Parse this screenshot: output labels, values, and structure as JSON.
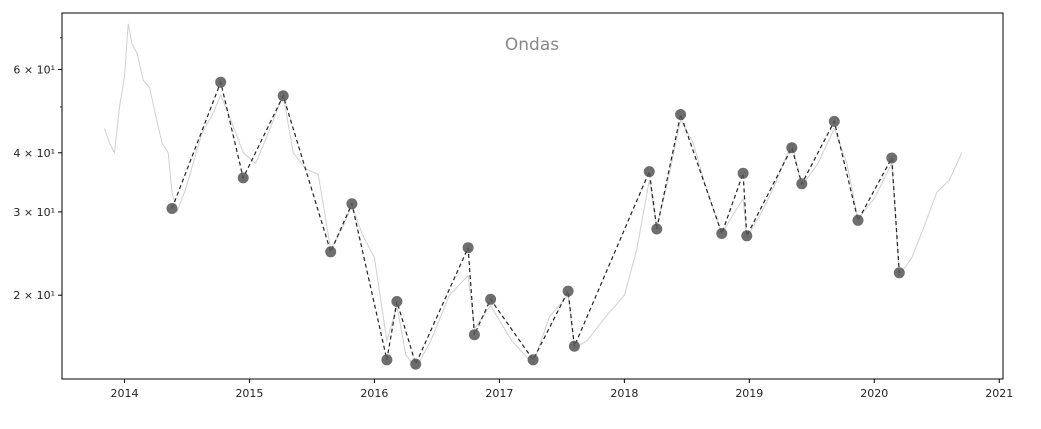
{
  "chart_data": {
    "type": "line",
    "title": "Ondas",
    "xlabel": "",
    "ylabel": "",
    "y_scale": "log",
    "grid": false,
    "x_tick_labels": [
      "2014",
      "2015",
      "2016",
      "2017",
      "2018",
      "2019",
      "2020",
      "2021"
    ],
    "y_ticks": [
      {
        "value": 20,
        "label": "2 × 10¹"
      },
      {
        "value": 30,
        "label": "3 × 10¹"
      },
      {
        "value": 40,
        "label": "4 × 10¹"
      },
      {
        "value": 60,
        "label": "6 × 10¹"
      }
    ],
    "xlim": [
      2013.5,
      2021.03
    ],
    "ylim": [
      13.3,
      79
    ],
    "colors": {
      "price_line": "#d0d0d0",
      "wave_line": "#222222",
      "markers": "#555555"
    },
    "series": [
      {
        "style": "light-gray-line",
        "x": [
          2013.84,
          2013.88,
          2013.92,
          2013.96,
          2014.0,
          2014.03,
          2014.06,
          2014.1,
          2014.15,
          2014.2,
          2014.25,
          2014.3,
          2014.35,
          2014.38,
          2014.42,
          2014.48,
          2014.55,
          2014.62,
          2014.7,
          2014.77,
          2014.85,
          2014.95,
          2015.05,
          2015.15,
          2015.27,
          2015.35,
          2015.45,
          2015.55,
          2015.65,
          2015.75,
          2015.82,
          2015.9,
          2016.0,
          2016.1,
          2016.18,
          2016.25,
          2016.33,
          2016.45,
          2016.6,
          2016.75,
          2016.8,
          2016.93,
          2017.1,
          2017.27,
          2017.4,
          2017.55,
          2017.6,
          2017.7,
          2017.85,
          2018.0,
          2018.1,
          2018.2,
          2018.26,
          2018.35,
          2018.45,
          2018.55,
          2018.65,
          2018.78,
          2018.85,
          2018.95,
          2018.98,
          2019.1,
          2019.2,
          2019.34,
          2019.42,
          2019.55,
          2019.68,
          2019.78,
          2019.87,
          2020.0,
          2020.14,
          2020.2,
          2020.3,
          2020.4,
          2020.5,
          2020.6,
          2020.7
        ],
        "y": [
          45,
          42,
          40,
          50,
          58,
          75,
          68,
          65,
          57,
          55,
          48,
          42,
          40,
          33,
          30,
          33,
          38,
          44,
          48,
          53,
          47,
          40,
          38,
          44,
          53,
          40,
          37,
          36,
          25,
          28,
          31,
          27,
          24,
          16,
          19,
          15,
          14,
          16,
          20,
          22,
          17,
          19,
          16,
          14.3,
          18,
          20,
          15.5,
          16,
          18,
          20,
          25,
          35,
          28,
          35,
          47,
          42,
          34,
          27,
          29,
          32,
          26.5,
          30,
          34,
          42,
          34,
          38,
          45,
          38,
          29,
          32,
          38,
          22,
          24,
          28,
          33,
          35,
          40
        ]
      },
      {
        "style": "dashed-line-with-markers",
        "x": [
          2014.38,
          2014.77,
          2014.95,
          2015.27,
          2015.65,
          2015.82,
          2016.1,
          2016.18,
          2016.33,
          2016.75,
          2016.8,
          2016.93,
          2017.27,
          2017.55,
          2017.6,
          2018.2,
          2018.26,
          2018.45,
          2018.78,
          2018.95,
          2018.98,
          2019.34,
          2019.42,
          2019.68,
          2019.87,
          2020.14,
          2020.2
        ],
        "y": [
          30.5,
          56.4,
          35.4,
          52.8,
          24.7,
          31.2,
          14.6,
          19.4,
          14.3,
          25.2,
          16.5,
          19.6,
          14.6,
          20.4,
          15.6,
          36.5,
          27.6,
          48.2,
          27.0,
          36.2,
          26.7,
          41.0,
          34.4,
          46.6,
          28.8,
          39.0,
          22.3
        ]
      }
    ]
  }
}
